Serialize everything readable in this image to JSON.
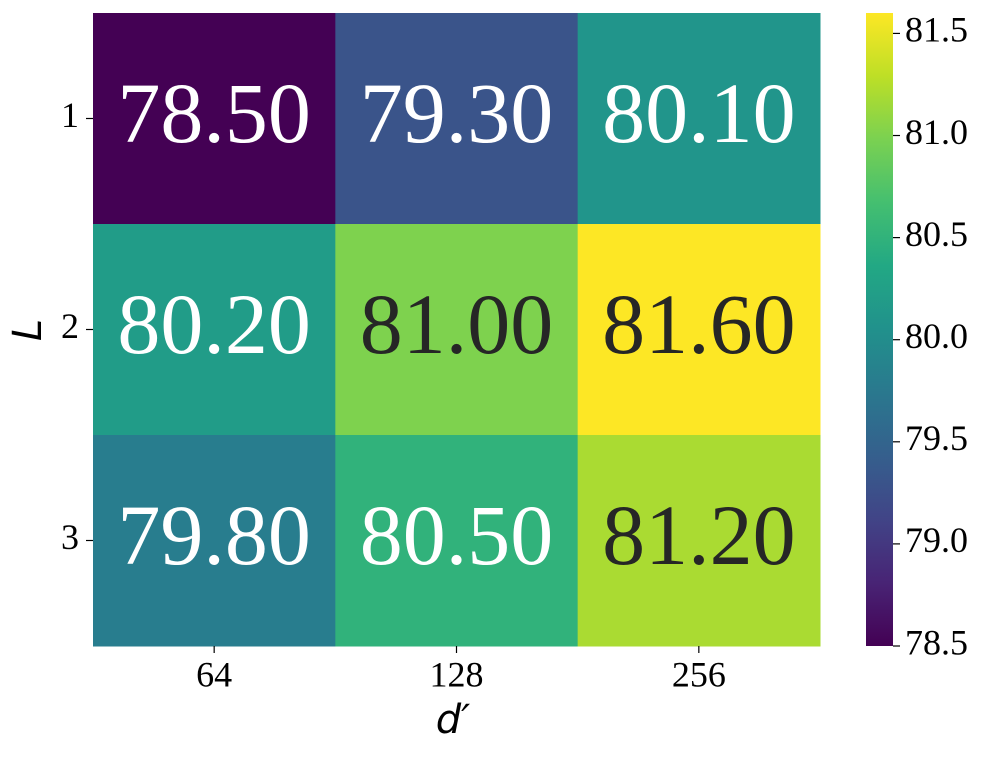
{
  "chart_data": {
    "type": "heatmap",
    "x_label": "d′",
    "y_label": "L",
    "categories": [
      "64",
      "128",
      "256"
    ],
    "y_categories": [
      "1",
      "2",
      "3"
    ],
    "values": [
      [
        78.5,
        79.3,
        80.1
      ],
      [
        80.2,
        81.0,
        81.6
      ],
      [
        79.8,
        80.5,
        81.2
      ]
    ],
    "value_labels": [
      [
        "78.50",
        "79.30",
        "80.10"
      ],
      [
        "80.20",
        "81.00",
        "81.60"
      ],
      [
        "79.80",
        "80.50",
        "81.20"
      ]
    ],
    "colormap": "viridis",
    "vlim": [
      78.5,
      81.6
    ],
    "colorbar_ticks": [
      78.5,
      {
        "value": 79.0,
        "label": "79.0"
      },
      79.5,
      {
        "value": 80.0,
        "label": "80.0"
      },
      80.5,
      {
        "value": 81.0,
        "label": "81.0"
      },
      81.5
    ]
  }
}
